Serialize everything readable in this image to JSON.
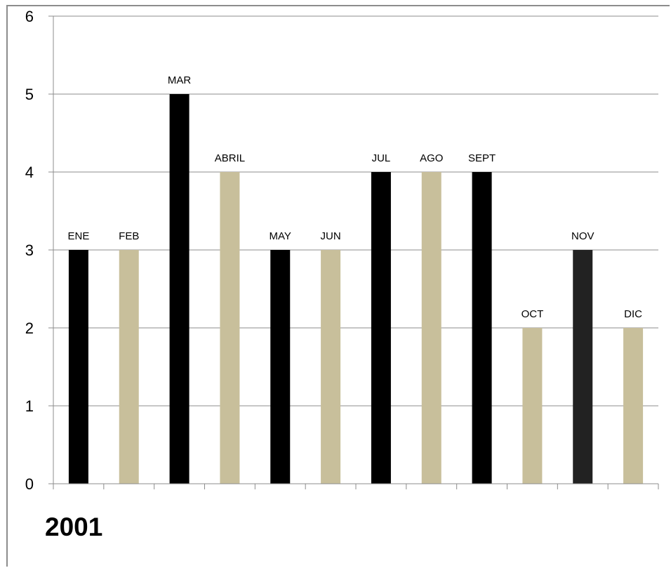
{
  "chart_data": {
    "type": "bar",
    "title": "",
    "xlabel": "",
    "ylabel": "",
    "ylim": [
      0,
      6
    ],
    "yticks": [
      0,
      1,
      2,
      3,
      4,
      5,
      6
    ],
    "categories": [
      "ENE",
      "FEB",
      "MAR",
      "ABRIL",
      "MAY",
      "JUN",
      "JUL",
      "AGO",
      "SEPT",
      "OCT",
      "NOV",
      "DIC"
    ],
    "values": [
      3,
      3,
      5,
      4,
      3,
      3,
      4,
      4,
      4,
      2,
      3,
      2
    ],
    "colors": [
      "#000000",
      "#c8bf9b",
      "#000000",
      "#c8bf9b",
      "#000000",
      "#c8bf9b",
      "#000000",
      "#c8bf9b",
      "#000000",
      "#c8bf9b",
      "#222222",
      "#c8bf9b"
    ],
    "grid": true,
    "legend": "none"
  },
  "caption": "2001"
}
